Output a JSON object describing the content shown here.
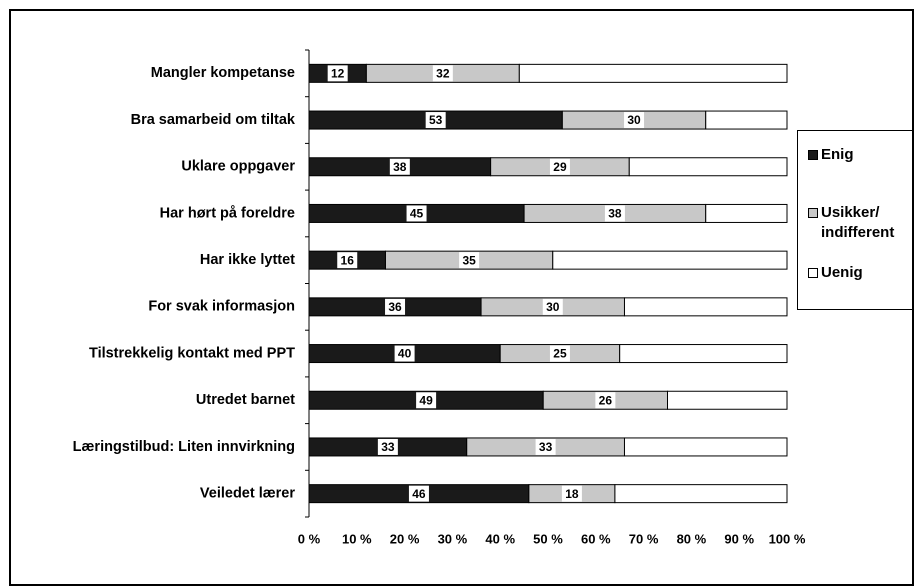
{
  "chart_data": {
    "type": "stacked-barh",
    "categories": [
      "Mangler kompetanse",
      "Bra samarbeid om tiltak",
      "Uklare oppgaver",
      "Har hørt på foreldre",
      "Har ikke lyttet",
      "For svak informasjon",
      "Tilstrekkelig kontakt med PPT",
      "Utredet barnet",
      "Læringstilbud: Liten innvirkning",
      "Veiledet lærer"
    ],
    "series": [
      {
        "name": "Enig",
        "color": "#1a1a1a",
        "values": [
          12,
          53,
          38,
          45,
          16,
          36,
          40,
          49,
          33,
          46
        ],
        "labeled": true
      },
      {
        "name": "Usikker/ indifferent",
        "color": "#c8c8c8",
        "values": [
          32,
          30,
          29,
          38,
          35,
          30,
          25,
          26,
          33,
          18
        ],
        "labeled": true
      },
      {
        "name": "Uenig",
        "color": "#ffffff",
        "values": [
          56,
          17,
          33,
          17,
          49,
          34,
          35,
          25,
          34,
          36
        ],
        "labeled": false
      }
    ],
    "xlim": [
      0,
      100
    ],
    "xticks": [
      {
        "value": 0,
        "label": "0 %"
      },
      {
        "value": 10,
        "label": "10 %"
      },
      {
        "value": 20,
        "label": "20 %"
      },
      {
        "value": 30,
        "label": "30 %"
      },
      {
        "value": 40,
        "label": "40 %"
      },
      {
        "value": 50,
        "label": "50 %"
      },
      {
        "value": 60,
        "label": "60 %"
      },
      {
        "value": 70,
        "label": "70 %"
      },
      {
        "value": 80,
        "label": "80 %"
      },
      {
        "value": 90,
        "label": "90 %"
      },
      {
        "value": 100,
        "label": "100 %"
      }
    ],
    "legend": "right"
  }
}
